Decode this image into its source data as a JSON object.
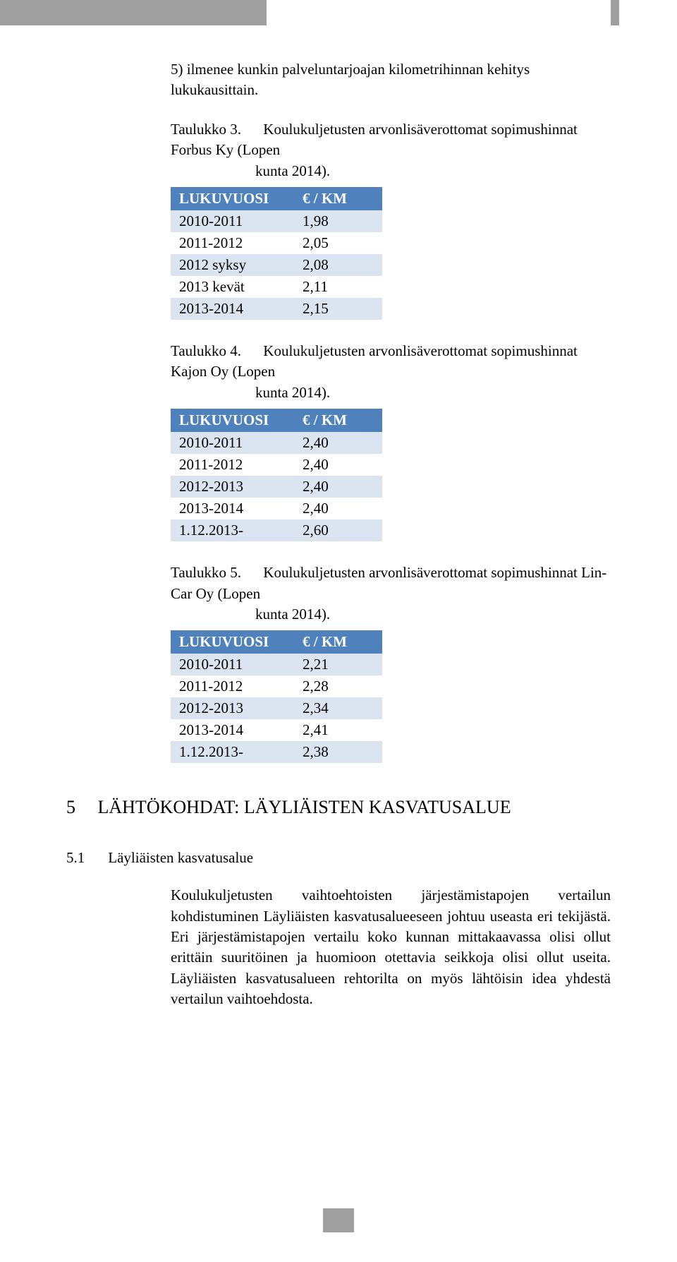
{
  "intro_text": "5) ilmenee kunkin palveluntarjoajan kilometrihinnan kehitys lukukausittain.",
  "tables": {
    "t3": {
      "caption_label": "Taulukko 3.",
      "caption_rest_line1": "Koulukuljetusten arvonlisäverottomat sopimushinnat Forbus Ky (Lopen",
      "caption_rest_line2": "kunta 2014).",
      "header_bg": "#4f81bd",
      "row_odd_bg": "#dbe5f1",
      "row_even_bg": "#ffffff",
      "col1": "LUKUVUOSI",
      "col2": "€ / KM",
      "rows": [
        {
          "a": "2010-2011",
          "b": "1,98"
        },
        {
          "a": "2011-2012",
          "b": "2,05"
        },
        {
          "a": "2012 syksy",
          "b": "2,08"
        },
        {
          "a": "2013 kevät",
          "b": "2,11"
        },
        {
          "a": "2013-2014",
          "b": "2,15"
        }
      ]
    },
    "t4": {
      "caption_label": "Taulukko 4.",
      "caption_rest_line1": "Koulukuljetusten arvonlisäverottomat sopimushinnat Kajon Oy (Lopen",
      "caption_rest_line2": "kunta 2014).",
      "header_bg": "#4f81bd",
      "row_odd_bg": "#dbe5f1",
      "row_even_bg": "#ffffff",
      "col1": "LUKUVUOSI",
      "col2": "€ / KM",
      "rows": [
        {
          "a": "2010-2011",
          "b": "2,40"
        },
        {
          "a": "2011-2012",
          "b": "2,40"
        },
        {
          "a": "2012-2013",
          "b": "2,40"
        },
        {
          "a": "2013-2014",
          "b": "2,40"
        },
        {
          "a": "1.12.2013-",
          "b": "2,60"
        }
      ]
    },
    "t5": {
      "caption_label": "Taulukko 5.",
      "caption_rest_line1": "Koulukuljetusten arvonlisäverottomat sopimushinnat Lin-Car Oy (Lopen",
      "caption_rest_line2": "kunta 2014).",
      "header_bg": "#4f81bd",
      "row_odd_bg": "#dbe5f1",
      "row_even_bg": "#ffffff",
      "col1": "LUKUVUOSI",
      "col2": "€ / KM",
      "rows": [
        {
          "a": "2010-2011",
          "b": "2,21"
        },
        {
          "a": "2011-2012",
          "b": "2,28"
        },
        {
          "a": "2012-2013",
          "b": "2,34"
        },
        {
          "a": "2013-2014",
          "b": "2,41"
        },
        {
          "a": "1.12.2013-",
          "b": "2,38"
        }
      ]
    }
  },
  "section": {
    "num": "5",
    "title": "LÄHTÖKOHDAT: LÄYLIÄISTEN KASVATUSALUE"
  },
  "subsection": {
    "num": "5.1",
    "title": "Läyliäisten kasvatusalue"
  },
  "para": "Koulukuljetusten vaihtoehtoisten järjestämistapojen vertailun kohdistuminen Läyliäisten kasvatusalueeseen johtuu useasta eri tekijästä. Eri järjestämistapojen vertailu koko kunnan mittakaavassa olisi ollut erittäin suuritöinen ja huomioon otettavia seikkoja olisi ollut useita. Läyliäisten kasvatusalueen rehtorilta on myös lähtöisin idea yhdestä vertailun vaihtoehdosta."
}
